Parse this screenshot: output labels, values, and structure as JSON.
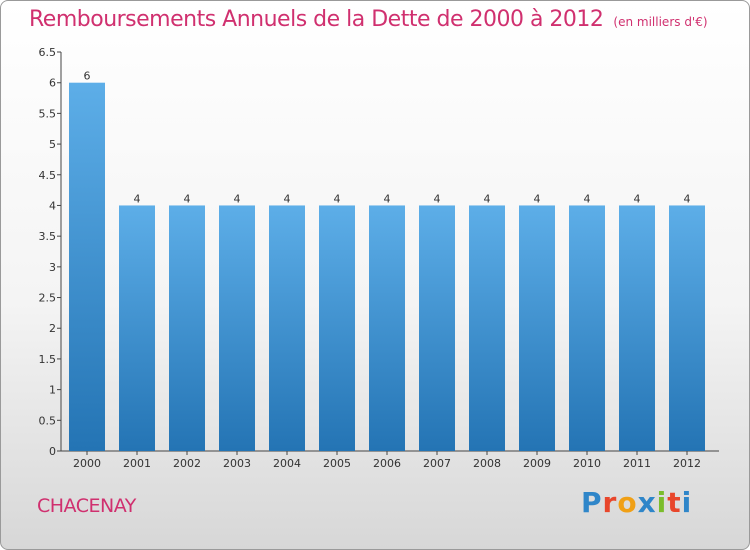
{
  "header": {
    "title": "Remboursements Annuels de la Dette de 2000 à 2012",
    "subtitle": "(en milliers d'€)"
  },
  "footer": {
    "commune": "CHACENAY",
    "logo": [
      "P",
      "r",
      "o",
      "x",
      "i",
      "t",
      "i"
    ]
  },
  "chart_data": {
    "type": "bar",
    "title": "Remboursements Annuels de la Dette de 2000 à 2012",
    "subtitle": "(en milliers d'€)",
    "categories": [
      "2000",
      "2001",
      "2002",
      "2003",
      "2004",
      "2005",
      "2006",
      "2007",
      "2008",
      "2009",
      "2010",
      "2011",
      "2012"
    ],
    "values": [
      6,
      4,
      4,
      4,
      4,
      4,
      4,
      4,
      4,
      4,
      4,
      4,
      4
    ],
    "ylim": [
      0,
      6.5
    ],
    "yticks": [
      "0",
      "0.5",
      "1",
      "1.5",
      "2",
      "2.5",
      "3",
      "3.5",
      "4",
      "4.5",
      "5",
      "5.5",
      "6",
      "6.5"
    ],
    "grid": false,
    "colors": {
      "bar_top": "#5daee8",
      "bar_bottom": "#2474b4",
      "title": "#d0306f"
    }
  }
}
